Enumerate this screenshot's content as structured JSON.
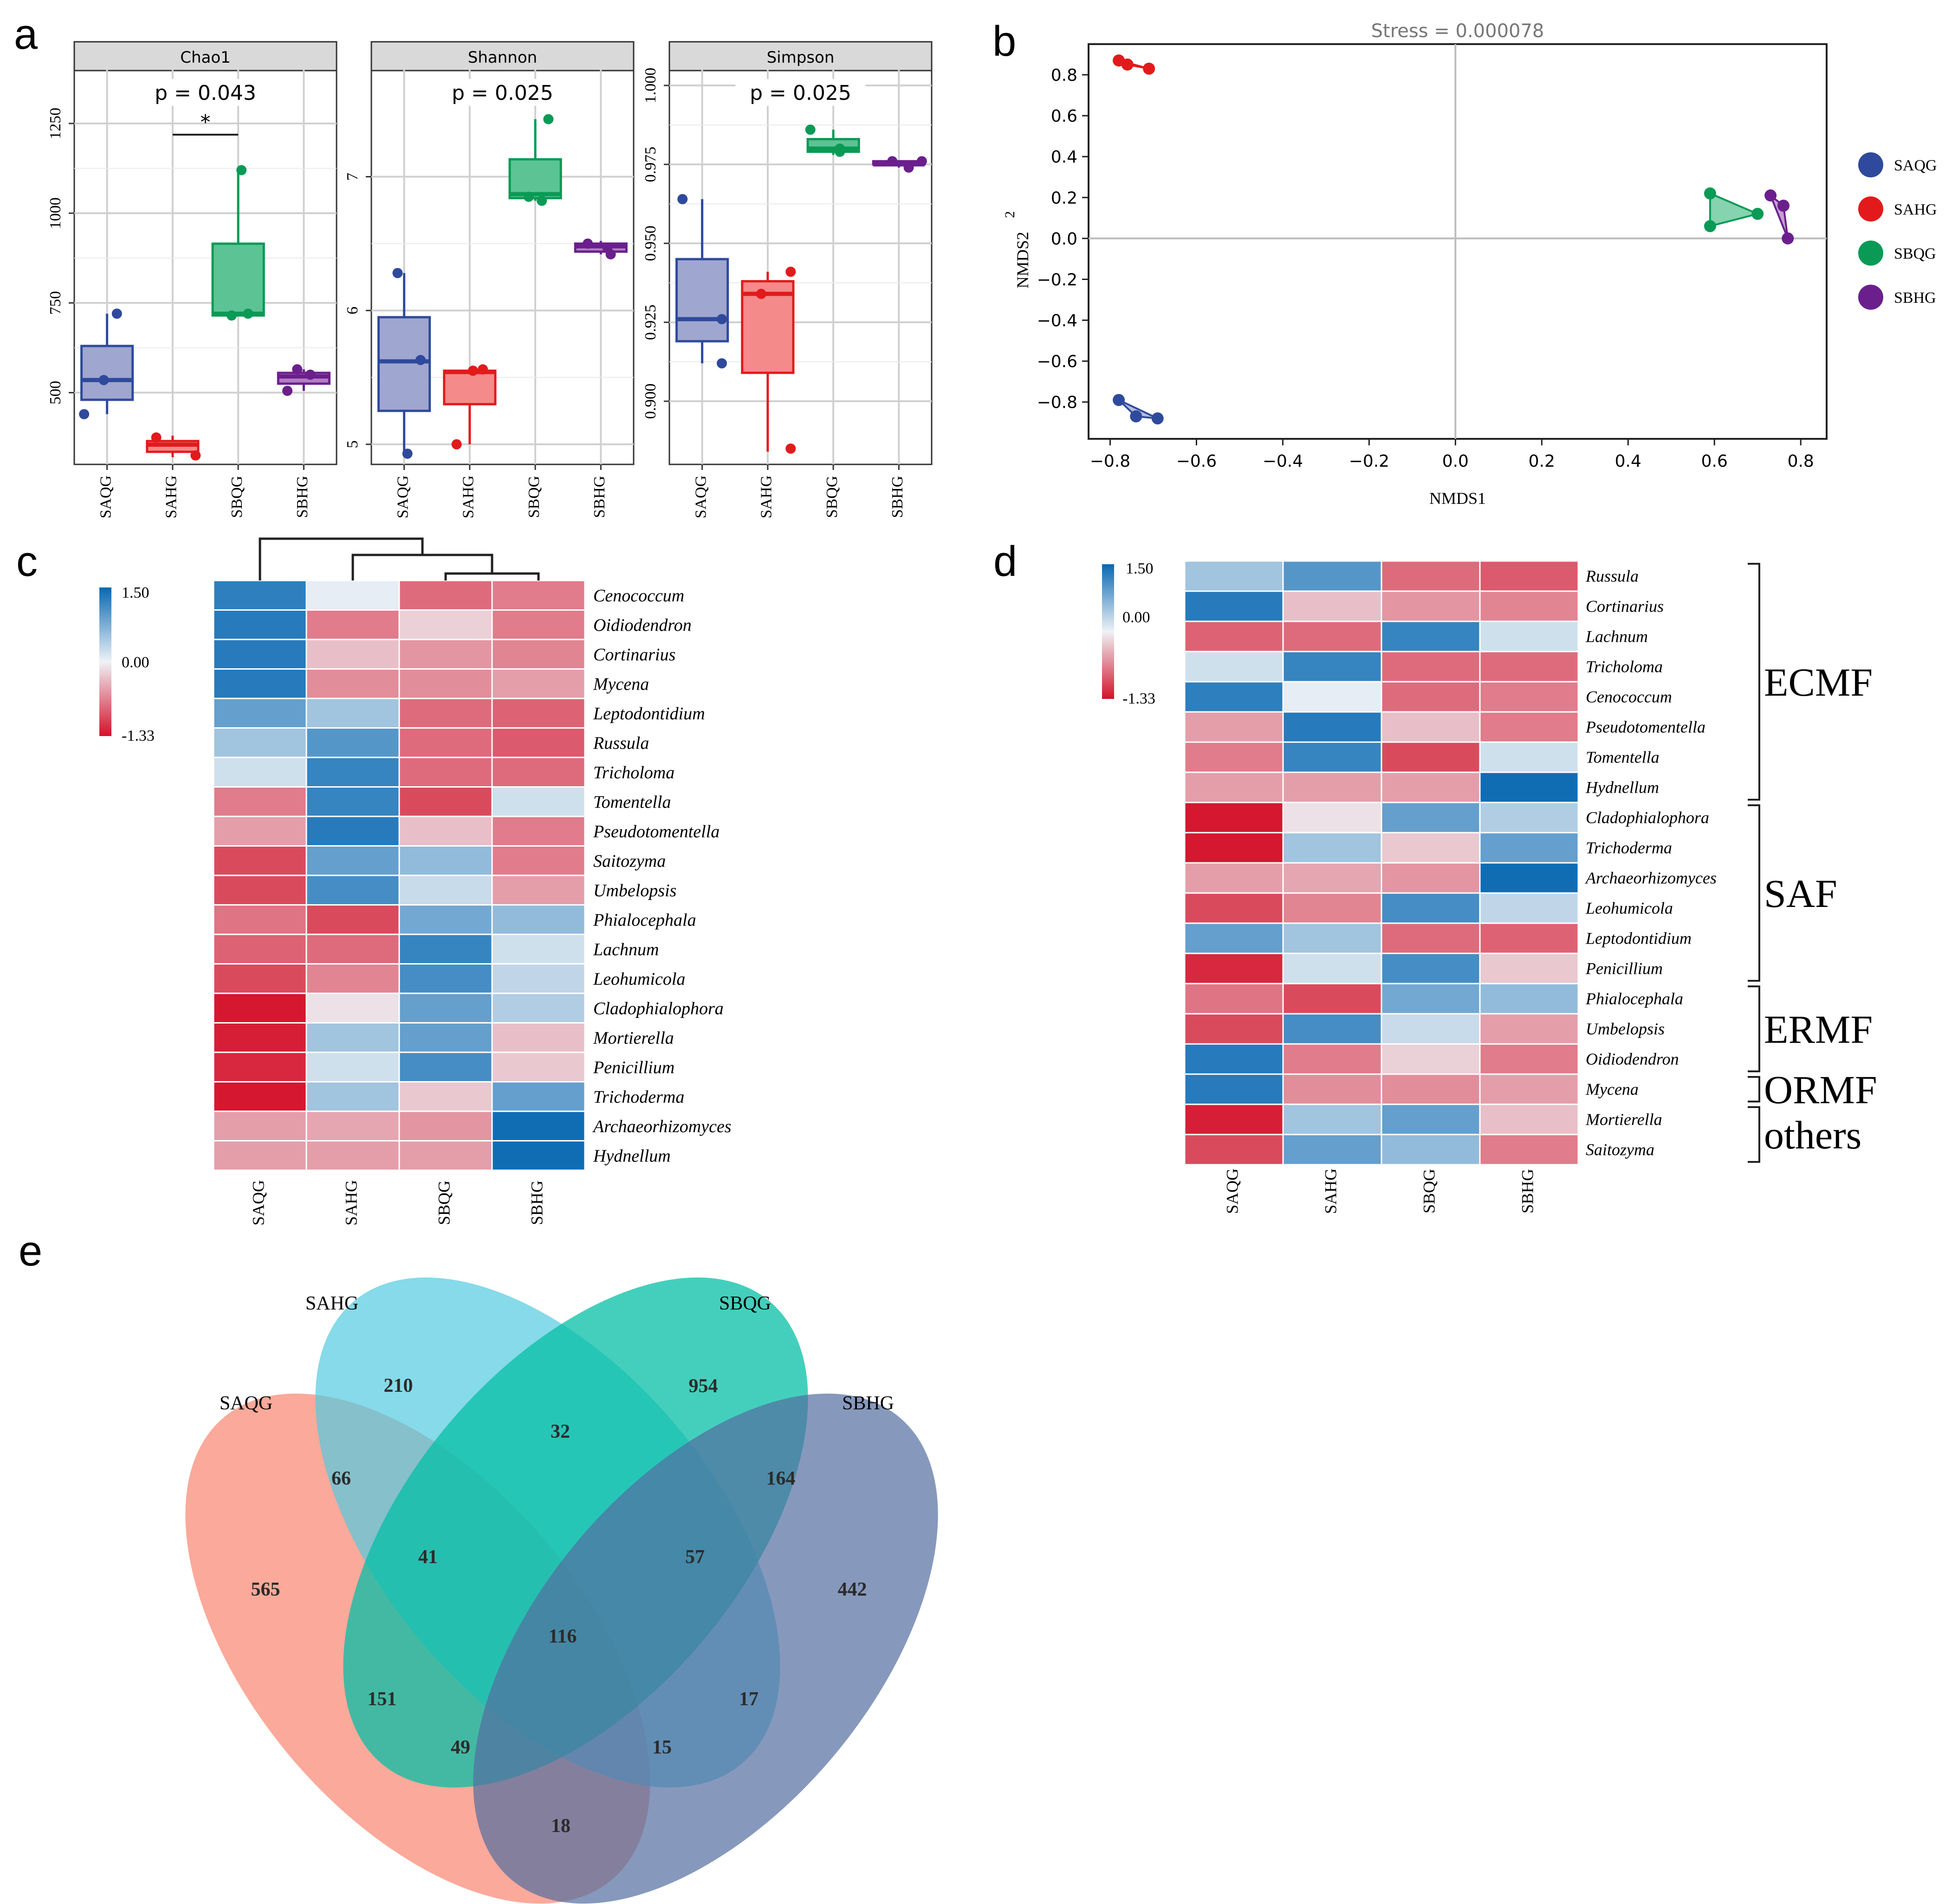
{
  "panels": {
    "a": "a",
    "b": "b",
    "c": "c",
    "d": "d",
    "e": "e"
  },
  "groups": [
    "SAQG",
    "SAHG",
    "SBQG",
    "SBHG"
  ],
  "colors": {
    "SAQG": "#2f4a9c",
    "SAHG": "#e31a1c",
    "SBQG": "#0a9a56",
    "SBHG": "#6b1f8c",
    "SAQG_fill": "#9fa6cf",
    "SAHG_fill": "#f58a8a",
    "SBQG_fill": "#5cc494",
    "SBHG_fill": "#b07fc4"
  },
  "chart_data": [
    {
      "id": "a1",
      "type": "box",
      "title": "Chao1",
      "pvalue": "p = 0.043",
      "sig": "*",
      "ylim": [
        300,
        1400
      ],
      "ticks": [
        {
          "v": 500,
          "t": "500"
        },
        {
          "v": 750,
          "t": "750"
        },
        {
          "v": 1000,
          "t": "1000"
        },
        {
          "v": 1250,
          "t": "1250"
        }
      ],
      "boxes": [
        {
          "g": "SAQG",
          "min": 440,
          "q1": 480,
          "med": 535,
          "q3": 630,
          "max": 720,
          "pts": [
            {
              "x": -0.35,
              "y": 440
            },
            {
              "x": -0.05,
              "y": 535
            },
            {
              "x": 0.15,
              "y": 720
            }
          ]
        },
        {
          "g": "SAHG",
          "min": 320,
          "q1": 335,
          "med": 355,
          "q3": 365,
          "max": 380,
          "pts": [
            {
              "x": -0.25,
              "y": 375
            },
            {
              "x": 0.35,
              "y": 325
            }
          ]
        },
        {
          "g": "SBQG",
          "min": 715,
          "q1": 715,
          "med": 720,
          "q3": 915,
          "max": 1120,
          "pts": [
            {
              "x": -0.1,
              "y": 715
            },
            {
              "x": 0.15,
              "y": 720
            },
            {
              "x": 0.05,
              "y": 1120
            }
          ]
        },
        {
          "g": "SBHG",
          "min": 505,
          "q1": 525,
          "med": 545,
          "q3": 555,
          "max": 565,
          "pts": [
            {
              "x": -0.25,
              "y": 505
            },
            {
              "x": 0.1,
              "y": 550
            },
            {
              "x": -0.1,
              "y": 565
            }
          ]
        }
      ]
    },
    {
      "id": "a2",
      "type": "box",
      "title": "Shannon",
      "pvalue": "p = 0.025",
      "sig": "",
      "ylim": [
        4.85,
        7.8
      ],
      "ticks": [
        {
          "v": 5,
          "t": "5"
        },
        {
          "v": 6,
          "t": "6"
        },
        {
          "v": 7,
          "t": "7"
        }
      ],
      "boxes": [
        {
          "g": "SAQG",
          "min": 4.95,
          "q1": 5.25,
          "med": 5.62,
          "q3": 5.95,
          "max": 6.28,
          "pts": [
            {
              "x": -0.1,
              "y": 6.28
            },
            {
              "x": 0.25,
              "y": 5.63
            },
            {
              "x": 0.05,
              "y": 4.93
            }
          ]
        },
        {
          "g": "SAHG",
          "min": 5.0,
          "q1": 5.3,
          "med": 5.54,
          "q3": 5.55,
          "max": 5.56,
          "pts": [
            {
              "x": -0.2,
              "y": 5.0
            },
            {
              "x": 0.05,
              "y": 5.55
            },
            {
              "x": 0.2,
              "y": 5.56
            }
          ]
        },
        {
          "g": "SBQG",
          "min": 6.82,
          "q1": 6.84,
          "med": 6.87,
          "q3": 7.13,
          "max": 7.43,
          "pts": [
            {
              "x": -0.1,
              "y": 6.85
            },
            {
              "x": 0.1,
              "y": 6.82
            },
            {
              "x": 0.2,
              "y": 7.43
            }
          ]
        },
        {
          "g": "SBHG",
          "min": 6.42,
          "q1": 6.44,
          "med": 6.48,
          "q3": 6.5,
          "max": 6.52,
          "pts": [
            {
              "x": -0.2,
              "y": 6.5
            },
            {
              "x": 0.1,
              "y": 6.47
            },
            {
              "x": 0.15,
              "y": 6.42
            }
          ]
        }
      ]
    },
    {
      "id": "a3",
      "type": "box",
      "title": "Simpson",
      "pvalue": "p = 0.025",
      "sig": "",
      "ylim": [
        0.88,
        1.005
      ],
      "ticks": [
        {
          "v": 0.9,
          "t": "0.900"
        },
        {
          "v": 0.925,
          "t": "0.925"
        },
        {
          "v": 0.95,
          "t": "0.950"
        },
        {
          "v": 0.975,
          "t": "0.975"
        },
        {
          "v": 1.0,
          "t": "1.000"
        }
      ],
      "boxes": [
        {
          "g": "SAQG",
          "min": 0.912,
          "q1": 0.919,
          "med": 0.926,
          "q3": 0.945,
          "max": 0.964,
          "pts": [
            {
              "x": -0.3,
              "y": 0.964
            },
            {
              "x": 0.3,
              "y": 0.926
            },
            {
              "x": 0.3,
              "y": 0.912
            }
          ]
        },
        {
          "g": "SAHG",
          "min": 0.884,
          "q1": 0.909,
          "med": 0.934,
          "q3": 0.938,
          "max": 0.941,
          "pts": [
            {
              "x": -0.1,
              "y": 0.934
            },
            {
              "x": 0.35,
              "y": 0.941
            },
            {
              "x": 0.35,
              "y": 0.885
            }
          ]
        },
        {
          "g": "SBQG",
          "min": 0.978,
          "q1": 0.979,
          "med": 0.98,
          "q3": 0.983,
          "max": 0.986,
          "pts": [
            {
              "x": -0.35,
              "y": 0.986
            },
            {
              "x": 0.1,
              "y": 0.98
            },
            {
              "x": 0.1,
              "y": 0.979
            }
          ]
        },
        {
          "g": "SBHG",
          "min": 0.974,
          "q1": 0.975,
          "med": 0.975,
          "q3": 0.976,
          "max": 0.976,
          "pts": [
            {
              "x": -0.1,
              "y": 0.976
            },
            {
              "x": 0.15,
              "y": 0.974
            },
            {
              "x": 0.35,
              "y": 0.976
            }
          ]
        }
      ]
    },
    {
      "id": "b",
      "type": "scatter",
      "title": "Stress = 0.000078",
      "xlabel": "NMDS1",
      "ylabel": "NMDS2",
      "ylabel_extra": "2",
      "xlim": [
        -0.85,
        0.86
      ],
      "ylim": [
        -0.98,
        0.95
      ],
      "xticks": [
        {
          "v": -0.8,
          "t": "−0.8"
        },
        {
          "v": -0.6,
          "t": "−0.6"
        },
        {
          "v": -0.4,
          "t": "−0.4"
        },
        {
          "v": -0.2,
          "t": "−0.2"
        },
        {
          "v": 0,
          "t": "0.0"
        },
        {
          "v": 0.2,
          "t": "0.2"
        },
        {
          "v": 0.4,
          "t": "0.4"
        },
        {
          "v": 0.6,
          "t": "0.6"
        },
        {
          "v": 0.8,
          "t": "0.8"
        }
      ],
      "yticks": [
        {
          "v": 0.8,
          "t": "0.8"
        },
        {
          "v": 0.6,
          "t": "0.6"
        },
        {
          "v": 0.4,
          "t": "0.4"
        },
        {
          "v": 0.2,
          "t": "0.2"
        },
        {
          "v": 0,
          "t": "0.0"
        },
        {
          "v": -0.2,
          "t": "−0.2"
        },
        {
          "v": -0.4,
          "t": "−0.4"
        },
        {
          "v": -0.6,
          "t": "−0.6"
        },
        {
          "v": -0.8,
          "t": "−0.8"
        }
      ],
      "series": [
        {
          "name": "SAQG",
          "points": [
            [
              -0.78,
              -0.79
            ],
            [
              -0.74,
              -0.87
            ],
            [
              -0.69,
              -0.88
            ]
          ]
        },
        {
          "name": "SAHG",
          "points": [
            [
              -0.78,
              0.87
            ],
            [
              -0.76,
              0.85
            ],
            [
              -0.71,
              0.83
            ]
          ]
        },
        {
          "name": "SBQG",
          "points": [
            [
              0.59,
              0.22
            ],
            [
              0.59,
              0.06
            ],
            [
              0.7,
              0.12
            ]
          ]
        },
        {
          "name": "SBHG",
          "points": [
            [
              0.73,
              0.21
            ],
            [
              0.76,
              0.16
            ],
            [
              0.77,
              0.0
            ]
          ]
        }
      ]
    },
    {
      "id": "c",
      "type": "heatmap",
      "columns": [
        "SAQG",
        "SAHG",
        "SBQG",
        "SBHG"
      ],
      "scale": {
        "max": "1.50",
        "mid": "0.00",
        "min": "-1.33"
      },
      "rows": [
        {
          "name": "Cenococcum",
          "v": [
            1.25,
            0.05,
            -0.8,
            -0.7
          ]
        },
        {
          "name": "Oidiodendron",
          "v": [
            1.3,
            -0.7,
            -0.2,
            -0.7
          ]
        },
        {
          "name": "Cortinarius",
          "v": [
            1.3,
            -0.3,
            -0.55,
            -0.65
          ]
        },
        {
          "name": "Mycena",
          "v": [
            1.3,
            -0.6,
            -0.6,
            -0.5
          ]
        },
        {
          "name": "Leptodontidium",
          "v": [
            0.9,
            0.5,
            -0.8,
            -0.85
          ]
        },
        {
          "name": "Russula",
          "v": [
            0.5,
            1.0,
            -0.8,
            -0.9
          ]
        },
        {
          "name": "Tricholoma",
          "v": [
            0.2,
            1.2,
            -0.8,
            -0.8
          ]
        },
        {
          "name": "Tomentella",
          "v": [
            -0.7,
            1.2,
            -1.0,
            0.2
          ]
        },
        {
          "name": "Pseudotomentella",
          "v": [
            -0.5,
            1.3,
            -0.3,
            -0.7
          ]
        },
        {
          "name": "Saitozyma",
          "v": [
            -1.0,
            0.9,
            0.6,
            -0.7
          ]
        },
        {
          "name": "Umbelopsis",
          "v": [
            -1.0,
            1.1,
            0.25,
            -0.5
          ]
        },
        {
          "name": "Phialocephala",
          "v": [
            -0.75,
            -1.0,
            0.8,
            0.6
          ]
        },
        {
          "name": "Lachnum",
          "v": [
            -0.85,
            -0.8,
            1.2,
            0.2
          ]
        },
        {
          "name": "Leohumicola",
          "v": [
            -1.0,
            -0.65,
            1.1,
            0.3
          ]
        },
        {
          "name": "Cladophialophora",
          "v": [
            -1.3,
            -0.1,
            0.9,
            0.4
          ]
        },
        {
          "name": "Mortierella",
          "v": [
            -1.25,
            0.5,
            0.9,
            -0.3
          ]
        },
        {
          "name": "Penicillium",
          "v": [
            -1.2,
            0.2,
            1.1,
            -0.25
          ]
        },
        {
          "name": "Trichoderma",
          "v": [
            -1.3,
            0.5,
            -0.25,
            0.9
          ]
        },
        {
          "name": "Archaeorhizomyces",
          "v": [
            -0.5,
            -0.45,
            -0.55,
            1.45
          ]
        },
        {
          "name": "Hydnellum",
          "v": [
            -0.5,
            -0.5,
            -0.5,
            1.45
          ]
        }
      ]
    },
    {
      "id": "d",
      "type": "heatmap",
      "columns": [
        "SAQG",
        "SAHG",
        "SBQG",
        "SBHG"
      ],
      "scale": {
        "max": "1.50",
        "mid": "0.00",
        "min": "-1.33"
      },
      "rows": [
        {
          "name": "Russula",
          "v": [
            0.5,
            1.0,
            -0.8,
            -0.9
          ]
        },
        {
          "name": "Cortinarius",
          "v": [
            1.3,
            -0.3,
            -0.55,
            -0.65
          ]
        },
        {
          "name": "Lachnum",
          "v": [
            -0.85,
            -0.8,
            1.2,
            0.2
          ]
        },
        {
          "name": "Tricholoma",
          "v": [
            0.2,
            1.2,
            -0.8,
            -0.8
          ]
        },
        {
          "name": "Cenococcum",
          "v": [
            1.25,
            0.05,
            -0.8,
            -0.7
          ]
        },
        {
          "name": "Pseudotomentella",
          "v": [
            -0.5,
            1.3,
            -0.3,
            -0.7
          ]
        },
        {
          "name": "Tomentella",
          "v": [
            -0.7,
            1.2,
            -1.0,
            0.2
          ]
        },
        {
          "name": "Hydnellum",
          "v": [
            -0.5,
            -0.5,
            -0.5,
            1.45
          ]
        },
        {
          "name": "Cladophialophora",
          "v": [
            -1.3,
            -0.1,
            0.9,
            0.4
          ]
        },
        {
          "name": "Trichoderma",
          "v": [
            -1.3,
            0.5,
            -0.25,
            0.9
          ]
        },
        {
          "name": "Archaeorhizomyces",
          "v": [
            -0.5,
            -0.45,
            -0.55,
            1.45
          ]
        },
        {
          "name": "Leohumicola",
          "v": [
            -1.0,
            -0.65,
            1.1,
            0.3
          ]
        },
        {
          "name": "Leptodontidium",
          "v": [
            0.9,
            0.5,
            -0.8,
            -0.85
          ]
        },
        {
          "name": "Penicillium",
          "v": [
            -1.2,
            0.2,
            1.1,
            -0.25
          ]
        },
        {
          "name": "Phialocephala",
          "v": [
            -0.75,
            -1.0,
            0.8,
            0.6
          ]
        },
        {
          "name": "Umbelopsis",
          "v": [
            -1.0,
            1.1,
            0.25,
            -0.5
          ]
        },
        {
          "name": "Oidiodendron",
          "v": [
            1.3,
            -0.7,
            -0.2,
            -0.7
          ]
        },
        {
          "name": "Mycena",
          "v": [
            1.3,
            -0.6,
            -0.6,
            -0.5
          ]
        },
        {
          "name": "Mortierella",
          "v": [
            -1.25,
            0.5,
            0.9,
            -0.3
          ]
        },
        {
          "name": "Saitozyma",
          "v": [
            -1.0,
            0.9,
            0.6,
            -0.7
          ]
        }
      ],
      "groups": [
        {
          "name": "ECMF",
          "from": 0,
          "to": 7
        },
        {
          "name": "SAF",
          "from": 8,
          "to": 13
        },
        {
          "name": "ERMF",
          "from": 14,
          "to": 16
        },
        {
          "name": "ORMF",
          "from": 17,
          "to": 17
        },
        {
          "name": "others",
          "from": 18,
          "to": 19
        }
      ]
    },
    {
      "id": "e",
      "type": "venn",
      "sets": [
        "SAQG",
        "SAHG",
        "SBQG",
        "SBHG"
      ],
      "regions": [
        {
          "key": "SAQG only",
          "v": "565"
        },
        {
          "key": "SAHG only",
          "v": "210"
        },
        {
          "key": "SBQG only",
          "v": "954"
        },
        {
          "key": "SBHG only",
          "v": "442"
        },
        {
          "key": "SAQG∩SAHG",
          "v": "66"
        },
        {
          "key": "SAHG∩SBQG",
          "v": "32"
        },
        {
          "key": "SBQG∩SBHG",
          "v": "164"
        },
        {
          "key": "SAQG∩SAHG∩SBQG",
          "v": "41"
        },
        {
          "key": "SAHG∩SBQG∩SBHG",
          "v": "57"
        },
        {
          "key": "all",
          "v": "116"
        },
        {
          "key": "SAQG∩SBQG",
          "v": "151"
        },
        {
          "key": "SAHG∩SBHG",
          "v": "17"
        },
        {
          "key": "SAQG∩SBQG∩SBHG",
          "v": "49"
        },
        {
          "key": "SAQG∩SAHG∩SBHG",
          "v": "15"
        },
        {
          "key": "SAQG∩SBHG",
          "v": "18"
        }
      ]
    }
  ]
}
